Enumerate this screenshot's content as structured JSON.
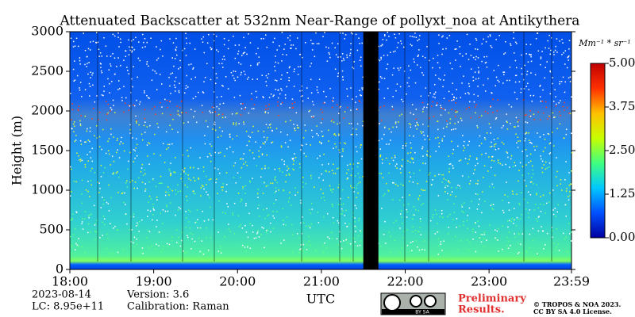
{
  "chart_data": {
    "type": "heatmap",
    "title": "Attenuated Backscatter at 532nm Near-Range of pollyxt_noa at Antikythera",
    "xlabel": "UTC",
    "ylabel": "Height (m)",
    "xlim": [
      18,
      23.9833
    ],
    "xticks": [
      {
        "value": 18,
        "label": "18:00"
      },
      {
        "value": 19,
        "label": "19:00"
      },
      {
        "value": 20,
        "label": "20:00"
      },
      {
        "value": 21,
        "label": "21:00"
      },
      {
        "value": 22,
        "label": "22:00"
      },
      {
        "value": 23,
        "label": "23:00"
      },
      {
        "value": 23.9833,
        "label": "23:59"
      }
    ],
    "ylim": [
      0,
      3000
    ],
    "yticks": [
      0,
      500,
      1000,
      1500,
      2000,
      2500,
      3000
    ],
    "no_data": [
      [
        21.5,
        21.68
      ]
    ],
    "colorbar": {
      "label": "Mm⁻¹ * sr⁻¹",
      "lim": [
        0,
        5
      ],
      "ticks": [
        {
          "value": 0,
          "label": "0.00"
        },
        {
          "value": 1.25,
          "label": "1.25"
        },
        {
          "value": 2.5,
          "label": "2.50"
        },
        {
          "value": 3.75,
          "label": "3.75"
        },
        {
          "value": 5,
          "label": "5.00"
        }
      ],
      "colors": [
        "#0000a0",
        "#0050ff",
        "#00c8ff",
        "#40ff80",
        "#c8ff00",
        "#ffc000",
        "#ff3000",
        "#c00000"
      ]
    }
  },
  "footer": {
    "date": "2023-08-14",
    "lc": "LC: 8.95e+11",
    "version": "Version: 3.6",
    "calibration": "Calibration: Raman",
    "preliminary": [
      "Preliminary",
      "Results."
    ],
    "copyright": [
      "© TROPOS & NOA 2023.",
      "CC BY SA 4.0 License."
    ],
    "badge": "BY   SA"
  }
}
